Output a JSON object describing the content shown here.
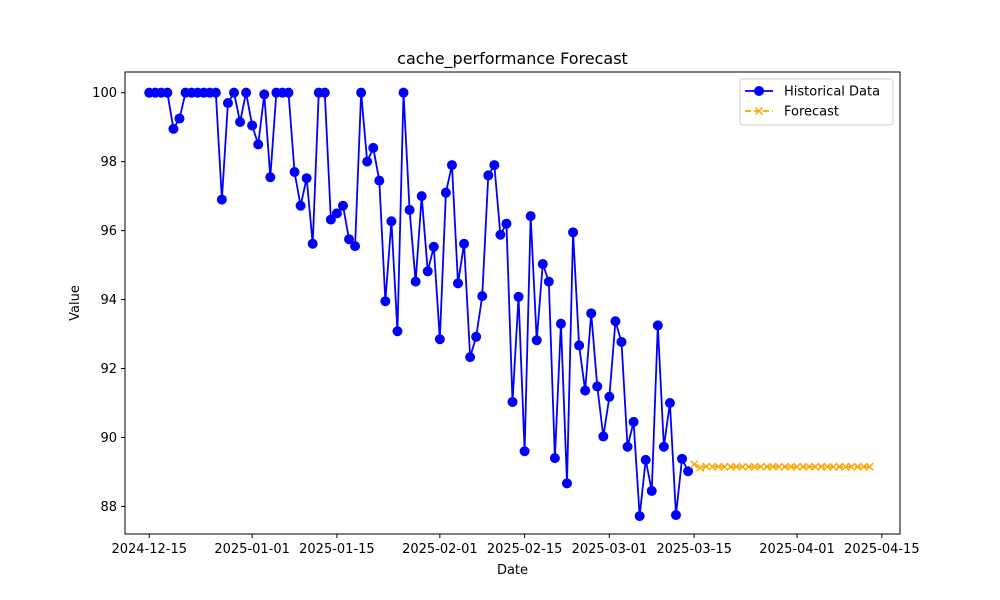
{
  "chart_data": {
    "type": "line",
    "title": "cache_performance Forecast",
    "xlabel": "Date",
    "ylabel": "Value",
    "xlim": [
      "2024-12-11",
      "2025-04-18"
    ],
    "ylim": [
      87.2,
      100.6
    ],
    "x_ticks": [
      "2024-12-15",
      "2025-01-01",
      "2025-01-15",
      "2025-02-01",
      "2025-02-15",
      "2025-03-01",
      "2025-03-15",
      "2025-04-01",
      "2025-04-15"
    ],
    "y_ticks": [
      88,
      90,
      92,
      94,
      96,
      98,
      100
    ],
    "legend_position": "upper right",
    "series": [
      {
        "name": "Historical Data",
        "color": "#0000ff",
        "marker": "circle",
        "line_style": "solid",
        "x": [
          "2024-12-15",
          "2024-12-16",
          "2024-12-17",
          "2024-12-18",
          "2024-12-19",
          "2024-12-20",
          "2024-12-21",
          "2024-12-22",
          "2024-12-23",
          "2024-12-24",
          "2024-12-25",
          "2024-12-26",
          "2024-12-27",
          "2024-12-28",
          "2024-12-29",
          "2024-12-30",
          "2024-12-31",
          "2025-01-01",
          "2025-01-02",
          "2025-01-03",
          "2025-01-04",
          "2025-01-05",
          "2025-01-06",
          "2025-01-07",
          "2025-01-08",
          "2025-01-09",
          "2025-01-10",
          "2025-01-11",
          "2025-01-12",
          "2025-01-13",
          "2025-01-14",
          "2025-01-15",
          "2025-01-16",
          "2025-01-17",
          "2025-01-18",
          "2025-01-19",
          "2025-01-20",
          "2025-01-21",
          "2025-01-22",
          "2025-01-23",
          "2025-01-24",
          "2025-01-25",
          "2025-01-26",
          "2025-01-27",
          "2025-01-28",
          "2025-01-29",
          "2025-01-30",
          "2025-01-31",
          "2025-02-01",
          "2025-02-02",
          "2025-02-03",
          "2025-02-04",
          "2025-02-05",
          "2025-02-06",
          "2025-02-07",
          "2025-02-08",
          "2025-02-09",
          "2025-02-10",
          "2025-02-11",
          "2025-02-12",
          "2025-02-13",
          "2025-02-14",
          "2025-02-15",
          "2025-02-16",
          "2025-02-17",
          "2025-02-18",
          "2025-02-19",
          "2025-02-20",
          "2025-02-21",
          "2025-02-22",
          "2025-02-23",
          "2025-02-24",
          "2025-02-25",
          "2025-02-26",
          "2025-02-27",
          "2025-02-28",
          "2025-03-01",
          "2025-03-02",
          "2025-03-03",
          "2025-03-04",
          "2025-03-05",
          "2025-03-06",
          "2025-03-07",
          "2025-03-08",
          "2025-03-09",
          "2025-03-10",
          "2025-03-11",
          "2025-03-12",
          "2025-03-13",
          "2025-03-14"
        ],
        "y": [
          100,
          100,
          100,
          100,
          98.95,
          99.25,
          100,
          100,
          100,
          100,
          100,
          100,
          96.9,
          99.7,
          100,
          99.15,
          100,
          99.05,
          98.5,
          99.95,
          97.55,
          100,
          100,
          100,
          97.7,
          96.72,
          97.52,
          95.62,
          100,
          100,
          96.32,
          96.5,
          96.72,
          95.75,
          95.55,
          100,
          98,
          98.4,
          97.45,
          93.95,
          96.27,
          93.08,
          100,
          96.6,
          94.52,
          97.0,
          94.82,
          95.53,
          92.85,
          97.1,
          97.9,
          94.47,
          95.62,
          92.33,
          92.92,
          94.1,
          97.6,
          97.9,
          95.88,
          96.2,
          91.03,
          94.08,
          89.6,
          96.42,
          92.82,
          95.03,
          94.52,
          89.4,
          93.3,
          88.67,
          95.95,
          92.67,
          91.36,
          93.6,
          91.48,
          90.03,
          91.18,
          93.37,
          92.77,
          89.73,
          90.45,
          87.72,
          89.35,
          88.45,
          93.25,
          89.73,
          91.0,
          87.75,
          89.38,
          89.02
        ]
      },
      {
        "name": "Forecast",
        "color": "#ffa500",
        "marker": "x",
        "line_style": "dashed",
        "x": [
          "2025-03-15",
          "2025-03-16",
          "2025-03-17",
          "2025-03-18",
          "2025-03-19",
          "2025-03-20",
          "2025-03-21",
          "2025-03-22",
          "2025-03-23",
          "2025-03-24",
          "2025-03-25",
          "2025-03-26",
          "2025-03-27",
          "2025-03-28",
          "2025-03-29",
          "2025-03-30",
          "2025-03-31",
          "2025-04-01",
          "2025-04-02",
          "2025-04-03",
          "2025-04-04",
          "2025-04-05",
          "2025-04-06",
          "2025-04-07",
          "2025-04-08",
          "2025-04-09",
          "2025-04-10",
          "2025-04-11",
          "2025-04-12",
          "2025-04-13"
        ],
        "y": [
          89.22,
          89.12,
          89.16,
          89.15,
          89.15,
          89.15,
          89.15,
          89.15,
          89.15,
          89.15,
          89.15,
          89.15,
          89.15,
          89.15,
          89.15,
          89.15,
          89.15,
          89.15,
          89.15,
          89.15,
          89.15,
          89.15,
          89.15,
          89.15,
          89.15,
          89.15,
          89.15,
          89.15,
          89.15,
          89.15
        ]
      }
    ]
  }
}
